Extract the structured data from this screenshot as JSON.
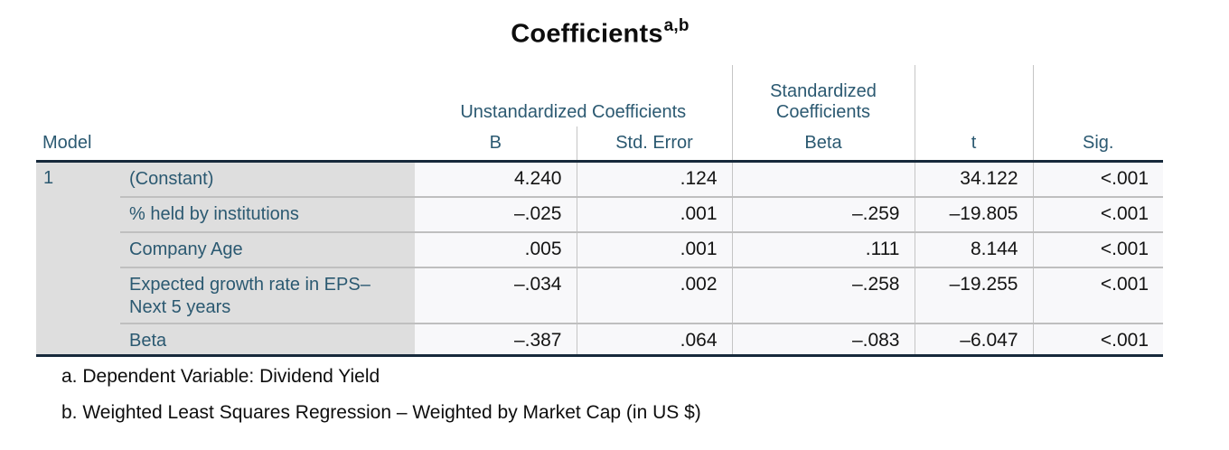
{
  "title": {
    "text": "Coefficients",
    "superscript": "a,b"
  },
  "table": {
    "header": {
      "model": "Model",
      "group_unstandardized": "Unstandardized Coefficients",
      "group_standardized": "Standardized Coefficients",
      "col_b": "B",
      "col_std_error": "Std. Error",
      "col_beta": "Beta",
      "col_t": "t",
      "col_sig": "Sig."
    },
    "model_number": "1",
    "rows": [
      {
        "label": "(Constant)",
        "b": "4.240",
        "std_error": ".124",
        "beta": "",
        "t": "34.122",
        "sig": "<.001"
      },
      {
        "label": "% held by institutions",
        "b": "–.025",
        "std_error": ".001",
        "beta": "–.259",
        "t": "–19.805",
        "sig": "<.001"
      },
      {
        "label": "Company Age",
        "b": ".005",
        "std_error": ".001",
        "beta": ".111",
        "t": "8.144",
        "sig": "<.001"
      },
      {
        "label": "Expected growth rate in EPS– Next 5 years",
        "b": "–.034",
        "std_error": ".002",
        "beta": "–.258",
        "t": "–19.255",
        "sig": "<.001"
      },
      {
        "label": "Beta",
        "b": "–.387",
        "std_error": ".064",
        "beta": "–.083",
        "t": "–6.047",
        "sig": "<.001"
      }
    ],
    "footnotes": [
      "a. Dependent Variable: Dividend Yield",
      "b. Weighted Least Squares Regression – Weighted by Market Cap (in US $)"
    ]
  },
  "colors": {
    "header_text": "#2b5971",
    "data_text": "#141414",
    "shaded_cell_bg": "#dedede",
    "data_cell_bg": "#f8f8fa",
    "thick_border": "#17293b",
    "grid_line": "#c5c5c5",
    "row_separator": "#bfbfbf"
  },
  "chart_data": {
    "type": "table",
    "title": "Coefficients (footnotes a,b)",
    "columns": [
      "Model",
      "Predictor",
      "B",
      "Std. Error",
      "Beta",
      "t",
      "Sig."
    ],
    "column_groups": {
      "Unstandardized Coefficients": [
        "B",
        "Std. Error"
      ],
      "Standardized Coefficients": [
        "Beta"
      ]
    },
    "model": "1",
    "rows": [
      {
        "predictor": "(Constant)",
        "B": 4.24,
        "std_error": 0.124,
        "beta": null,
        "t": 34.122,
        "sig": "<.001"
      },
      {
        "predictor": "% held by institutions",
        "B": -0.025,
        "std_error": 0.001,
        "beta": -0.259,
        "t": -19.805,
        "sig": "<.001"
      },
      {
        "predictor": "Company Age",
        "B": 0.005,
        "std_error": 0.001,
        "beta": 0.111,
        "t": 8.144,
        "sig": "<.001"
      },
      {
        "predictor": "Expected growth rate in EPS– Next 5 years",
        "B": -0.034,
        "std_error": 0.002,
        "beta": -0.258,
        "t": -19.255,
        "sig": "<.001"
      },
      {
        "predictor": "Beta",
        "B": -0.387,
        "std_error": 0.064,
        "beta": -0.083,
        "t": -6.047,
        "sig": "<.001"
      }
    ],
    "footnotes": [
      "a. Dependent Variable: Dividend Yield",
      "b. Weighted Least Squares Regression – Weighted by Market Cap (in US $)"
    ]
  }
}
